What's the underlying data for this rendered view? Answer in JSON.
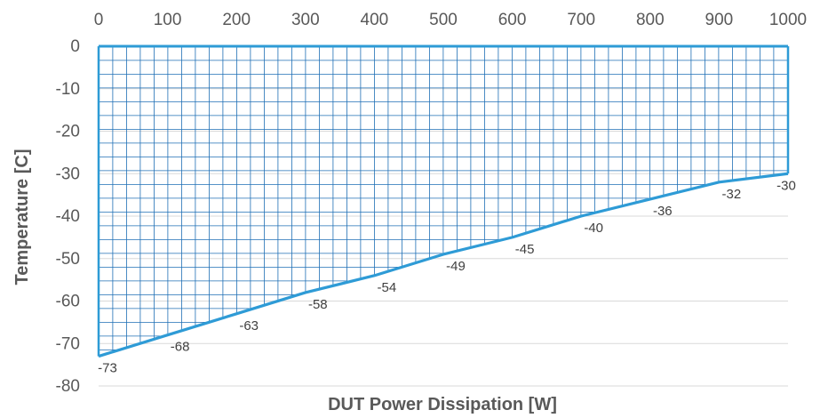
{
  "chart_data": {
    "type": "area",
    "xlabel": "DUT Power Dissipation [W]",
    "ylabel": "Temperature [C]",
    "xlim": [
      0,
      1000
    ],
    "ylim": [
      -80,
      0
    ],
    "x_ticks": [
      0,
      100,
      200,
      300,
      400,
      500,
      600,
      700,
      800,
      900,
      1000
    ],
    "y_ticks": [
      0,
      -10,
      -20,
      -30,
      -40,
      -50,
      -60,
      -70,
      -80
    ],
    "x_axis_position": "top",
    "grid": true,
    "fill_pattern": "grid-hatch",
    "line_color": "#2e9bd6",
    "fill_color": "#1f6fb5",
    "series": [
      {
        "x": [
          0,
          100,
          200,
          300,
          400,
          500,
          600,
          700,
          800,
          900,
          1000
        ],
        "values": [
          -73,
          -68,
          -63,
          -58,
          -54,
          -49,
          -45,
          -40,
          -36,
          -32,
          -30
        ],
        "data_labels": [
          "-73",
          "-68",
          "-63",
          "-58",
          "-54",
          "-49",
          "-45",
          "-40",
          "-36",
          "-32",
          "-30"
        ]
      }
    ]
  }
}
